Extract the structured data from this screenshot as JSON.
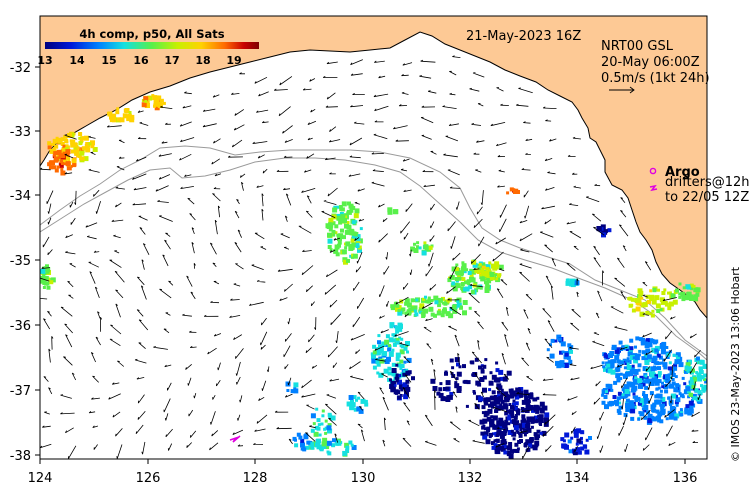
{
  "map": {
    "date_label": "21-May-2023 16Z",
    "product": {
      "line1": "NRT00 GSL",
      "line2": "20-May 06:00Z",
      "line3": "0.5m/s (1kt 24h)"
    },
    "legend_title": "4h comp, p50, All Sats",
    "colorbar_ticks": [
      "13",
      "14",
      "15",
      "16",
      "17",
      "18",
      "19"
    ],
    "argo_label": "Argo",
    "drifters_line1": "drifters@12h",
    "drifters_line2": "to 22/05 12Z",
    "credit": "© IMOS 23-May-2023 13:06 Hobart",
    "lon_ticks": [
      "124",
      "126",
      "128",
      "130",
      "132",
      "134",
      "136"
    ],
    "lat_ticks": [
      "-32",
      "-33",
      "-34",
      "-35",
      "-36",
      "-37",
      "-38"
    ],
    "colors": {
      "land": "#fdc995",
      "ocean": "#ffffff",
      "coast": "#000000",
      "bathymetry": "#9a9a9a",
      "argo": "#e000e0",
      "sst_palette": [
        "#00007f",
        "#0018d8",
        "#0080ff",
        "#15e0e0",
        "#58f04a",
        "#c8f000",
        "#ffd200",
        "#ff6a00",
        "#c80000",
        "#7f0000"
      ]
    }
  }
}
